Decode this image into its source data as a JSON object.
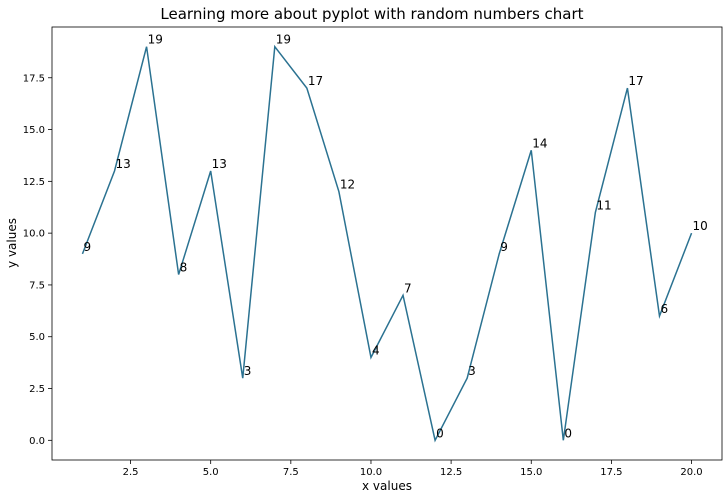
{
  "chart_data": {
    "type": "line",
    "title": "Learning more about pyplot with random numbers chart",
    "xlabel": "x values",
    "ylabel": "y values",
    "x": [
      1,
      2,
      3,
      4,
      5,
      6,
      7,
      8,
      9,
      10,
      11,
      12,
      13,
      14,
      15,
      16,
      17,
      18,
      19,
      20
    ],
    "series": [
      {
        "values": [
          9,
          13,
          19,
          8,
          13,
          3,
          19,
          17,
          12,
          4,
          7,
          0,
          3,
          9,
          14,
          0,
          11,
          17,
          6,
          10
        ]
      }
    ],
    "data_labels": [
      "9",
      "13",
      "19",
      "8",
      "13",
      "3",
      "19",
      "17",
      "12",
      "4",
      "7",
      "0",
      "3",
      "9",
      "14",
      "0",
      "11",
      "17",
      "6",
      "10"
    ],
    "xlim": [
      0.05,
      20.95
    ],
    "ylim": [
      -0.95,
      19.95
    ],
    "xticks": [
      2.5,
      5.0,
      7.5,
      10.0,
      12.5,
      15.0,
      17.5,
      20.0
    ],
    "xtick_labels": [
      "2.5",
      "5.0",
      "7.5",
      "10.0",
      "12.5",
      "15.0",
      "17.5",
      "20.0"
    ],
    "yticks": [
      0.0,
      2.5,
      5.0,
      7.5,
      10.0,
      12.5,
      15.0,
      17.5
    ],
    "ytick_labels": [
      "0.0",
      "2.5",
      "5.0",
      "7.5",
      "10.0",
      "12.5",
      "15.0",
      "17.5"
    ],
    "grid": false,
    "line_color": "#2b7291"
  }
}
